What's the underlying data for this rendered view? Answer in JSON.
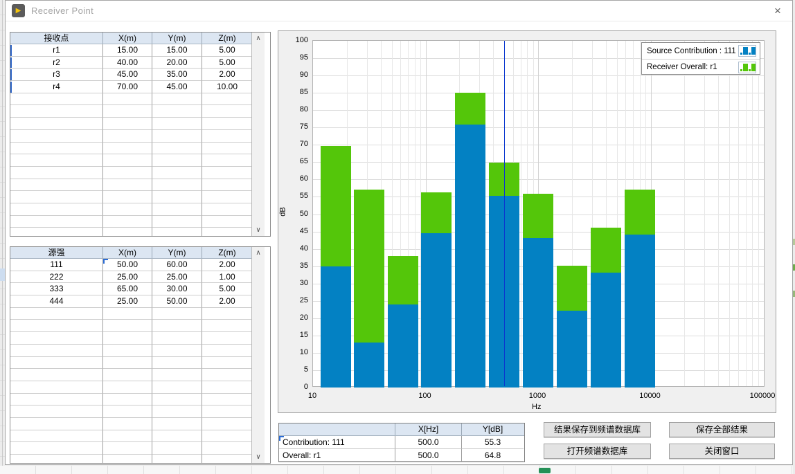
{
  "window": {
    "title": "Receiver Point",
    "close_label": "×",
    "icon_glyph": "▶"
  },
  "receiver_table": {
    "headers": [
      "接收点",
      "X(m)",
      "Y(m)",
      "Z(m)"
    ],
    "rows": [
      [
        "r1",
        "15.00",
        "15.00",
        "5.00"
      ],
      [
        "r2",
        "40.00",
        "20.00",
        "5.00"
      ],
      [
        "r3",
        "45.00",
        "35.00",
        "2.00"
      ],
      [
        "r4",
        "70.00",
        "45.00",
        "10.00"
      ]
    ]
  },
  "source_table": {
    "headers": [
      "源强",
      "X(m)",
      "Y(m)",
      "Z(m)"
    ],
    "rows": [
      [
        "111",
        "50.00",
        "60.00",
        "2.00"
      ],
      [
        "222",
        "25.00",
        "25.00",
        "1.00"
      ],
      [
        "333",
        "65.00",
        "30.00",
        "5.00"
      ],
      [
        "444",
        "25.00",
        "50.00",
        "2.00"
      ]
    ]
  },
  "chart_data": {
    "type": "bar",
    "x_scale": "log",
    "xlabel": "Hz",
    "ylabel": "dB",
    "xlim": [
      10,
      100000
    ],
    "ylim": [
      0,
      100
    ],
    "y_tick_step": 5,
    "x_tick_labels": [
      "10",
      "100",
      "1000",
      "10000",
      "100000"
    ],
    "grid": true,
    "legend_position": "top-right",
    "frequencies": [
      16,
      31.5,
      63,
      125,
      250,
      500,
      1000,
      2000,
      4000,
      8000
    ],
    "series": [
      {
        "name": "Source Contribution : 111",
        "color": "#0381c3",
        "values": [
          35.0,
          13.0,
          24.0,
          44.6,
          75.8,
          55.3,
          43.2,
          22.2,
          33.2,
          44.2
        ]
      },
      {
        "name": "Receiver Overall: r1",
        "color": "#54c60a",
        "values": [
          69.6,
          57.0,
          38.0,
          56.3,
          85.1,
          64.8,
          55.8,
          35.1,
          46.1,
          57.0
        ]
      }
    ],
    "cursor_x": 500,
    "cursor_color": "#0a38cf"
  },
  "cursor_table": {
    "headers": [
      "",
      "X[Hz]",
      "Y[dB]"
    ],
    "rows": [
      [
        "Contribution: 111",
        "500.0",
        "55.3"
      ],
      [
        "Overall: r1",
        "500.0",
        "64.8"
      ]
    ]
  },
  "buttons": {
    "save_to_db": "结果保存到频谱数据库",
    "save_all": "保存全部结果",
    "open_db": "打开频谱数据库",
    "close_window": "关闭窗口"
  },
  "colors": {
    "table_header_bg": "#dce6f2",
    "contribution_bar": "#0381c3",
    "overall_bar": "#54c60a",
    "cursor_line": "#0a38cf"
  }
}
